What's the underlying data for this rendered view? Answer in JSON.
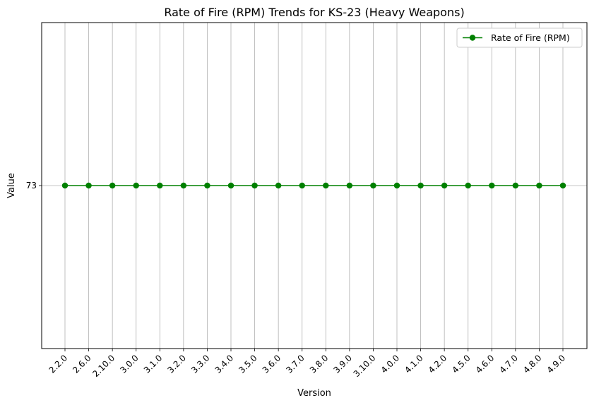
{
  "chart_data": {
    "type": "line",
    "title": "Rate of Fire (RPM) Trends for KS-23 (Heavy Weapons)",
    "xlabel": "Version",
    "ylabel": "Value",
    "categories": [
      "2.2.0",
      "2.6.0",
      "2.10.0",
      "3.0.0",
      "3.1.0",
      "3.2.0",
      "3.3.0",
      "3.4.0",
      "3.5.0",
      "3.6.0",
      "3.7.0",
      "3.8.0",
      "3.9.0",
      "3.10.0",
      "4.0.0",
      "4.1.0",
      "4.2.0",
      "4.5.0",
      "4.6.0",
      "4.7.0",
      "4.8.0",
      "4.9.0"
    ],
    "series": [
      {
        "name": "Rate of Fire (RPM)",
        "color": "#008000",
        "marker": "circle",
        "values": [
          73,
          73,
          73,
          73,
          73,
          73,
          73,
          73,
          73,
          73,
          73,
          73,
          73,
          73,
          73,
          73,
          73,
          73,
          73,
          73,
          73,
          73
        ]
      }
    ],
    "ylim": [
      72.945,
      73.055
    ],
    "yticks": [
      "73"
    ],
    "grid": true,
    "legend_position": "top-right"
  }
}
